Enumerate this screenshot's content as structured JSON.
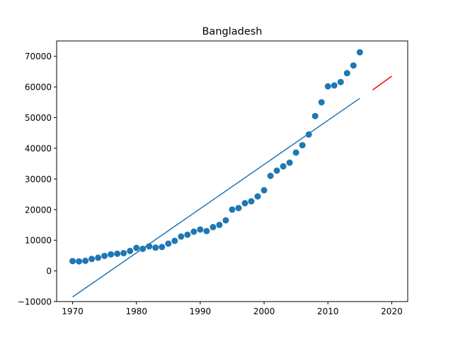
{
  "chart_data": {
    "type": "scatter",
    "title": "Bangladesh",
    "xlabel": "",
    "ylabel": "",
    "xlim": [
      1967.5,
      2022.5
    ],
    "ylim": [
      -10000,
      75000
    ],
    "x_ticks": [
      1970,
      1980,
      1990,
      2000,
      2010,
      2020
    ],
    "y_ticks": [
      -10000,
      0,
      10000,
      20000,
      30000,
      40000,
      50000,
      60000,
      70000
    ],
    "grid": false,
    "colors": {
      "points": "#1f77b4",
      "fit": "#1f77b4",
      "forecast": "#ff0000"
    },
    "series": [
      {
        "type": "scatter",
        "x": [
          1970,
          1971,
          1972,
          1973,
          1974,
          1975,
          1976,
          1977,
          1978,
          1979,
          1980,
          1981,
          1982,
          1983,
          1984,
          1985,
          1986,
          1987,
          1988,
          1989,
          1990,
          1991,
          1992,
          1993,
          1994,
          1995,
          1996,
          1997,
          1998,
          1999,
          2000,
          2001,
          2002,
          2003,
          2004,
          2005,
          2006,
          2007,
          2008,
          2009,
          2010,
          2011,
          2012,
          2013,
          2014,
          2015
        ],
        "values": [
          3200,
          3100,
          3300,
          3900,
          4300,
          4900,
          5400,
          5600,
          5800,
          6500,
          7500,
          7200,
          8000,
          7600,
          7800,
          8900,
          9800,
          11200,
          11800,
          12800,
          13500,
          13000,
          14300,
          15000,
          16500,
          20000,
          20500,
          22100,
          22700,
          24300,
          26300,
          31000,
          32700,
          34100,
          35300,
          38600,
          41000,
          44500,
          50500,
          55000,
          60200,
          60500,
          61600,
          64500,
          67000,
          71300
        ]
      },
      {
        "type": "line",
        "x": [
          1970,
          2015
        ],
        "values": [
          -8500,
          56300
        ]
      },
      {
        "type": "line",
        "x": [
          2017,
          2020
        ],
        "values": [
          59000,
          63500
        ]
      }
    ]
  }
}
